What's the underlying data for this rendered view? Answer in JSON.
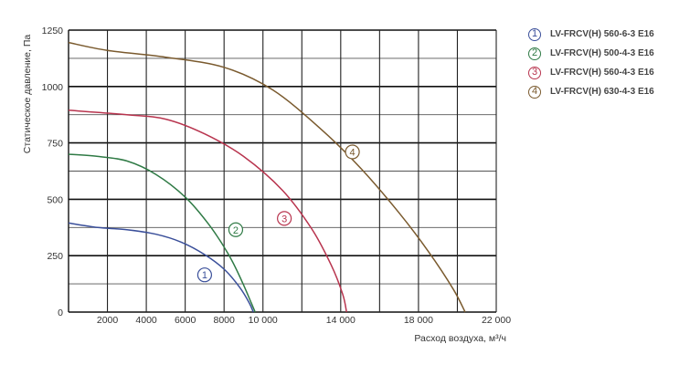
{
  "chart_data": {
    "type": "line",
    "xlabel": "Расход воздуха, м³/ч",
    "ylabel": "Статическое давление, Па",
    "xlim": [
      0,
      22000
    ],
    "ylim": [
      0,
      1250
    ],
    "x_ticks": [
      {
        "value": 2000,
        "label": "2000"
      },
      {
        "value": 4000,
        "label": "4000"
      },
      {
        "value": 6000,
        "label": "6000"
      },
      {
        "value": 8000,
        "label": "8000"
      },
      {
        "value": 10000,
        "label": "10 000"
      },
      {
        "value": 14000,
        "label": "14 000"
      },
      {
        "value": 18000,
        "label": "18 000"
      },
      {
        "value": 22000,
        "label": "22 000"
      }
    ],
    "x_gridlines": [
      2000,
      4000,
      6000,
      8000,
      10000,
      12000,
      14000,
      16000,
      18000,
      20000,
      22000
    ],
    "y_ticks": [
      {
        "value": 0,
        "label": "0"
      },
      {
        "value": 250,
        "label": "250"
      },
      {
        "value": 500,
        "label": "500"
      },
      {
        "value": 750,
        "label": "750"
      },
      {
        "value": 1000,
        "label": "1000"
      },
      {
        "value": 1250,
        "label": "1250"
      }
    ],
    "y_gridlines": [
      0,
      125,
      250,
      375,
      500,
      625,
      750,
      875,
      1000,
      1125,
      1250
    ],
    "grid": true,
    "legend_position": "right",
    "series": [
      {
        "name": "LV-FRCV(H) 560-6-3 E16",
        "marker": "1",
        "color": "#3a4f9a",
        "label_at": [
          7000,
          165
        ],
        "points": [
          [
            0,
            395
          ],
          [
            1500,
            375
          ],
          [
            3000,
            365
          ],
          [
            4500,
            345
          ],
          [
            5800,
            310
          ],
          [
            7000,
            255
          ],
          [
            8000,
            190
          ],
          [
            8800,
            110
          ],
          [
            9300,
            40
          ],
          [
            9500,
            0
          ]
        ]
      },
      {
        "name": "LV-FRCV(H) 500-4-3 E16",
        "marker": "2",
        "color": "#2f7a45",
        "label_at": [
          8600,
          365
        ],
        "points": [
          [
            0,
            700
          ],
          [
            1500,
            690
          ],
          [
            3000,
            670
          ],
          [
            4500,
            610
          ],
          [
            6000,
            510
          ],
          [
            7200,
            390
          ],
          [
            8200,
            260
          ],
          [
            8900,
            140
          ],
          [
            9400,
            40
          ],
          [
            9600,
            0
          ]
        ]
      },
      {
        "name": "LV-FRCV(H) 560-4-3 E16",
        "marker": "3",
        "color": "#b8344e",
        "label_at": [
          11100,
          415
        ],
        "points": [
          [
            0,
            895
          ],
          [
            3000,
            875
          ],
          [
            5000,
            855
          ],
          [
            7000,
            790
          ],
          [
            9000,
            690
          ],
          [
            11000,
            540
          ],
          [
            12500,
            370
          ],
          [
            13500,
            210
          ],
          [
            14100,
            80
          ],
          [
            14300,
            0
          ]
        ]
      },
      {
        "name": "LV-FRCV(H) 630-4-3 E16",
        "marker": "4",
        "color": "#7a5a2e",
        "label_at": [
          14600,
          710
        ],
        "points": [
          [
            0,
            1195
          ],
          [
            2000,
            1160
          ],
          [
            5000,
            1130
          ],
          [
            8000,
            1085
          ],
          [
            10500,
            985
          ],
          [
            13000,
            810
          ],
          [
            15000,
            640
          ],
          [
            17000,
            440
          ],
          [
            18500,
            270
          ],
          [
            19800,
            100
          ],
          [
            20400,
            0
          ]
        ]
      }
    ]
  }
}
